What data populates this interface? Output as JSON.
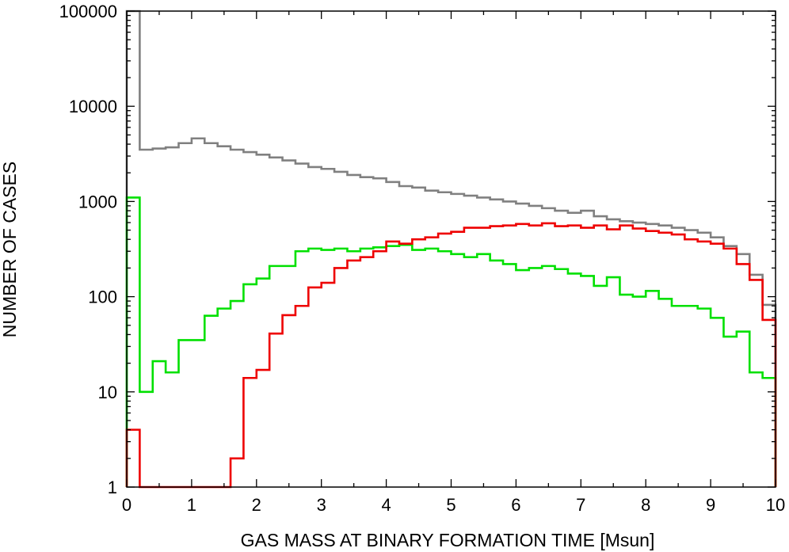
{
  "chart_data": {
    "type": "line",
    "step": true,
    "title": "",
    "xlabel": "GAS MASS AT BINARY FORMATION TIME [Msun]",
    "ylabel": "NUMBER OF CASES",
    "xlim": [
      0,
      10
    ],
    "ylim": [
      1,
      100000
    ],
    "yscale": "log",
    "grid": false,
    "legend": "none",
    "xticks": [
      "0",
      "1",
      "2",
      "3",
      "4",
      "5",
      "6",
      "7",
      "8",
      "9",
      "10"
    ],
    "yticks": [
      "1",
      "10",
      "100",
      "1000",
      "10000",
      "100000"
    ],
    "bin_edges": [
      0,
      0.2,
      0.4,
      0.6,
      0.8,
      1.0,
      1.2,
      1.4,
      1.6,
      1.8,
      2.0,
      2.2,
      2.4,
      2.6,
      2.8,
      3.0,
      3.2,
      3.4,
      3.6,
      3.8,
      4.0,
      4.2,
      4.4,
      4.6,
      4.8,
      5.0,
      5.2,
      5.4,
      5.6,
      5.8,
      6.0,
      6.2,
      6.4,
      6.6,
      6.8,
      7.0,
      7.2,
      7.4,
      7.6,
      7.8,
      8.0,
      8.2,
      8.4,
      8.6,
      8.8,
      9.0,
      9.2,
      9.4,
      9.6,
      9.8,
      10.0
    ],
    "series": [
      {
        "color": "#808080",
        "values": [
          100000,
          3500,
          3600,
          3700,
          4100,
          4600,
          4100,
          3800,
          3500,
          3300,
          3100,
          2900,
          2700,
          2500,
          2300,
          2200,
          2050,
          1900,
          1800,
          1750,
          1600,
          1450,
          1400,
          1300,
          1250,
          1200,
          1150,
          1100,
          1050,
          1000,
          950,
          900,
          850,
          800,
          760,
          800,
          700,
          650,
          620,
          600,
          580,
          560,
          530,
          500,
          470,
          420,
          340,
          280,
          170,
          82
        ]
      },
      {
        "color": "#00e000",
        "values": [
          1100,
          10,
          21,
          16,
          35,
          35,
          63,
          75,
          90,
          135,
          155,
          210,
          210,
          300,
          320,
          310,
          320,
          300,
          320,
          330,
          340,
          350,
          310,
          320,
          300,
          280,
          260,
          280,
          240,
          220,
          190,
          200,
          210,
          195,
          175,
          165,
          130,
          160,
          105,
          100,
          115,
          95,
          80,
          80,
          75,
          60,
          38,
          43,
          16,
          14
        ]
      },
      {
        "color": "#ee0000",
        "values": [
          4,
          1,
          1,
          1,
          1,
          1,
          1,
          1,
          2,
          14,
          17,
          41,
          64,
          80,
          125,
          140,
          200,
          240,
          260,
          300,
          380,
          360,
          400,
          420,
          460,
          480,
          530,
          530,
          550,
          560,
          580,
          560,
          590,
          550,
          560,
          530,
          560,
          510,
          560,
          520,
          490,
          470,
          450,
          400,
          380,
          360,
          320,
          220,
          150,
          57
        ]
      }
    ]
  }
}
